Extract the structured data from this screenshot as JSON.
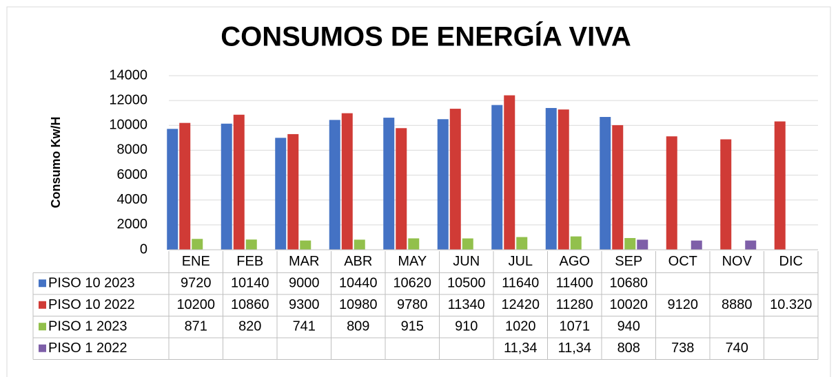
{
  "chart_data": {
    "type": "bar",
    "title": "CONSUMOS DE ENERGÍA VIVA",
    "y_label": "Consumo Kw/H",
    "categories": [
      "ENE",
      "FEB",
      "MAR",
      "ABR",
      "MAY",
      "JUN",
      "JUL",
      "AGO",
      "SEP",
      "OCT",
      "NOV",
      "DIC"
    ],
    "series": [
      {
        "name": "PISO 10 2023",
        "color": "#4472c4",
        "values": [
          9720,
          10140,
          9000,
          10440,
          10620,
          10500,
          11640,
          11400,
          10680,
          null,
          null,
          null
        ]
      },
      {
        "name": "PISO 10 2022",
        "color": "#d03b36",
        "values": [
          10200,
          10860,
          9300,
          10980,
          9780,
          11340,
          12420,
          11280,
          10020,
          9120,
          8880,
          10320
        ],
        "value_labels": [
          null,
          null,
          null,
          null,
          null,
          null,
          null,
          null,
          null,
          null,
          null,
          "10.320"
        ]
      },
      {
        "name": "PISO 1 2023",
        "color": "#92c04c",
        "values": [
          871,
          820,
          741,
          809,
          915,
          910,
          1020,
          1071,
          940,
          null,
          null,
          null
        ]
      },
      {
        "name": "PISO 1 2022",
        "color": "#7e5fa8",
        "values": [
          null,
          null,
          null,
          null,
          null,
          null,
          11.34,
          11.34,
          808,
          738,
          740,
          null
        ],
        "value_labels": [
          null,
          null,
          null,
          null,
          null,
          null,
          "11,34",
          "11,34",
          null,
          null,
          null,
          null
        ]
      }
    ],
    "ylim": [
      0,
      14000
    ],
    "yticks": [
      0,
      2000,
      4000,
      6000,
      8000,
      10000,
      12000,
      14000
    ],
    "grid": true
  }
}
